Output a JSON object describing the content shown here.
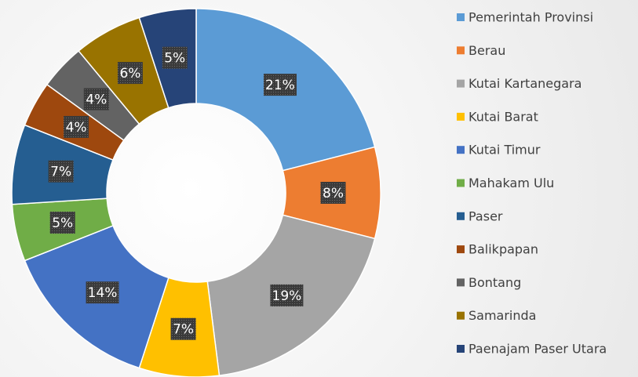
{
  "chart_data": {
    "type": "donut",
    "categories": [
      "Pemerintah Provinsi",
      "Berau",
      "Kutai Kartanegara",
      "Kutai Barat",
      "Kutai Timur",
      "Mahakam Ulu",
      "Paser",
      "Balikpapan",
      "Bontang",
      "Samarinda",
      "Paenajam Paser Utara"
    ],
    "values": [
      21,
      8,
      19,
      7,
      14,
      5,
      7,
      4,
      4,
      6,
      5
    ],
    "value_labels": [
      "21%",
      "8%",
      "19%",
      "7%",
      "14%",
      "5%",
      "7%",
      "4%",
      "4%",
      "6%",
      "5%"
    ],
    "colors": [
      "#5b9bd5",
      "#ed7d31",
      "#a5a5a5",
      "#ffc000",
      "#4472c4",
      "#70ad47",
      "#255e91",
      "#9e480e",
      "#636363",
      "#997300",
      "#264478"
    ],
    "legend": "right"
  }
}
